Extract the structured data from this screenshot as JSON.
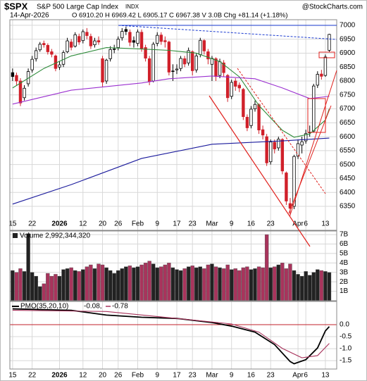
{
  "chart_data": [
    {
      "type": "candlestick",
      "symbol": "$SPX",
      "title": "S&P 500 Large Cap Index",
      "exchange": "INDX",
      "source": "@StockCharts.com",
      "date": "14-Apr-2026",
      "quote": "O 6910.20  H 6969.42  L 6905.17  C 6967.38  V 3.0B  Chg +81.14 (+1.18%)",
      "open": [
        6830,
        6820,
        6800,
        6740,
        6790,
        6840,
        6880,
        6912,
        6935,
        6928,
        6905,
        6890,
        6850,
        6860,
        6905,
        6940,
        6925,
        6960,
        6945,
        6975,
        6960,
        6930,
        6945,
        6880,
        6800,
        6880,
        6915,
        6920,
        6955,
        6985,
        6975,
        6945,
        6935,
        6975,
        6920,
        6880,
        6800,
        6935,
        6965,
        6945,
        6940,
        6835,
        6840,
        6845,
        6880,
        6865,
        6905,
        6840,
        6895,
        6945,
        6905,
        6860,
        6880,
        6820,
        6865,
        6820,
        6745,
        6800,
        6785,
        6770,
        6670,
        6640,
        6700,
        6715,
        6625,
        6600,
        6510,
        6580,
        6560,
        6590,
        6470,
        6360,
        6350,
        6530,
        6570,
        6585,
        6615,
        6620,
        6785,
        6825,
        6820,
        6910.2
      ],
      "high": [
        6845,
        6830,
        6810,
        6785,
        6845,
        6890,
        6920,
        6940,
        6945,
        6935,
        6915,
        6895,
        6870,
        6910,
        6955,
        6950,
        6975,
        6970,
        6985,
        6990,
        6970,
        6955,
        6960,
        6890,
        6880,
        6925,
        6930,
        6960,
        6990,
        6995,
        6985,
        6960,
        6985,
        6985,
        6930,
        6890,
        6940,
        6975,
        6975,
        6960,
        6945,
        6860,
        6860,
        6890,
        6890,
        6920,
        6910,
        6900,
        6955,
        6950,
        6915,
        6890,
        6885,
        6880,
        6875,
        6825,
        6805,
        6810,
        6795,
        6775,
        6680,
        6710,
        6730,
        6720,
        6640,
        6610,
        6590,
        6590,
        6600,
        6595,
        6475,
        6380,
        6535,
        6590,
        6600,
        6625,
        6640,
        6790,
        6835,
        6840,
        6895,
        6969.42
      ],
      "low": [
        6800,
        6785,
        6710,
        6730,
        6780,
        6830,
        6870,
        6905,
        6920,
        6895,
        6885,
        6835,
        6840,
        6850,
        6900,
        6910,
        6920,
        6930,
        6935,
        6950,
        6915,
        6920,
        6930,
        6780,
        6790,
        6870,
        6900,
        6910,
        6945,
        6965,
        6925,
        6920,
        6925,
        6905,
        6870,
        6785,
        6795,
        6925,
        6930,
        6920,
        6820,
        6800,
        6825,
        6835,
        6850,
        6855,
        6820,
        6830,
        6885,
        6895,
        6860,
        6800,
        6800,
        6810,
        6815,
        6725,
        6735,
        6765,
        6760,
        6660,
        6620,
        6630,
        6690,
        6610,
        6590,
        6495,
        6500,
        6540,
        6550,
        6465,
        6355,
        6316,
        6340,
        6520,
        6540,
        6575,
        6600,
        6615,
        6775,
        6805,
        6815,
        6905.17
      ],
      "close": [
        6816,
        6800,
        6721,
        6774,
        6834,
        6878,
        6909,
        6932,
        6930,
        6905,
        6896,
        6845,
        6858,
        6902,
        6944,
        6921,
        6966,
        6940,
        6977,
        6963,
        6926,
        6944,
        6940,
        6796,
        6875,
        6913,
        6915,
        6950,
        6978,
        6978,
        6939,
        6939,
        6976,
        6917,
        6882,
        6798,
        6932,
        6964,
        6942,
        6941,
        6832,
        6836,
        6843,
        6881,
        6861,
        6909,
        6837,
        6890,
        6946,
        6908,
        6879,
        6881,
        6816,
        6869,
        6830,
        6740,
        6795,
        6781,
        6775,
        6672,
        6632,
        6699,
        6716,
        6624,
        6606,
        6506,
        6581,
        6556,
        6591,
        6477,
        6369,
        6343,
        6529,
        6575,
        6582,
        6611,
        6616,
        6782,
        6824,
        6817,
        6886,
        6967.38
      ],
      "overlays": [
        {
          "color": "#2e8b3a",
          "x": [
            0,
            8,
            15,
            24,
            33,
            40,
            47,
            53,
            58,
            63,
            69,
            72,
            76,
            80,
            81
          ],
          "values": [
            6775,
            6845,
            6890,
            6920,
            6915,
            6910,
            6900,
            6870,
            6815,
            6712,
            6623,
            6598,
            6610,
            6660,
            6700
          ]
        },
        {
          "color": "#9b30d0",
          "x": [
            0,
            15,
            33,
            40,
            51,
            62,
            69,
            76,
            81
          ],
          "values": [
            6717,
            6767,
            6793,
            6808,
            6818,
            6808,
            6775,
            6737,
            6745
          ]
        },
        {
          "color": "#1a1a9c",
          "x": [
            0,
            15,
            33,
            51,
            69,
            81
          ],
          "values": [
            6358,
            6428,
            6522,
            6573,
            6585,
            6595
          ]
        }
      ],
      "xlim": [
        -0.7,
        82.9
      ],
      "ylim": [
        6264,
        7020
      ],
      "yticks": [
        6350,
        6400,
        6450,
        6500,
        6550,
        6600,
        6650,
        6700,
        6750,
        6800,
        6850,
        6900,
        6950,
        7000
      ],
      "xticks": [
        {
          "value": 0,
          "label": "15"
        },
        {
          "value": 5,
          "label": "22"
        },
        {
          "value": 12,
          "label": "2026"
        },
        {
          "value": 18,
          "label": "12"
        },
        {
          "value": 23,
          "label": "20"
        },
        {
          "value": 27,
          "label": "26"
        },
        {
          "value": 32,
          "label": "Feb"
        },
        {
          "value": 37,
          "label": "9"
        },
        {
          "value": 42,
          "label": "17"
        },
        {
          "value": 46,
          "label": "23"
        },
        {
          "value": 51,
          "label": "Mar"
        },
        {
          "value": 56,
          "label": "9"
        },
        {
          "value": 61,
          "label": "16"
        },
        {
          "value": 66,
          "label": "23"
        },
        {
          "value": 73,
          "label": "Apr"
        },
        {
          "value": 75,
          "label": "6"
        },
        {
          "value": 80,
          "label": "13"
        }
      ],
      "grid": true
    },
    {
      "type": "bar",
      "title": "Volume 2,992,344,320",
      "values": [
        3.2,
        3.0,
        3.4,
        3.1,
        7.1,
        3.0,
        2.6,
        1.5,
        1.8,
        2.9,
        2.6,
        2.8,
        2.6,
        3.3,
        3.4,
        3.5,
        3.2,
        3.1,
        3.3,
        3.6,
        3.8,
        3.4,
        3.9,
        3.8,
        3.5,
        3.2,
        2.9,
        3.2,
        3.4,
        3.6,
        3.7,
        3.5,
        3.6,
        3.8,
        4.0,
        4.2,
        3.9,
        3.5,
        3.6,
        3.8,
        4.0,
        3.5,
        3.3,
        3.2,
        3.4,
        3.6,
        3.7,
        3.5,
        3.6,
        3.4,
        3.8,
        3.9,
        3.6,
        3.5,
        3.4,
        3.8,
        3.3,
        3.4,
        3.2,
        3.5,
        3.6,
        3.3,
        3.4,
        3.6,
        3.5,
        7.0,
        3.5,
        3.6,
        3.8,
        4.0,
        3.4,
        3.9,
        3.2,
        2.8,
        2.6,
        3.1,
        2.7,
        3.0,
        3.3,
        3.2,
        3.1,
        2.99
      ],
      "up_color": "#222222",
      "down_color": "#a8345c",
      "xlim": [
        -0.7,
        82.9
      ],
      "ylim": [
        0,
        7.38
      ],
      "yticks": [
        {
          "value": 1,
          "label": "1B"
        },
        {
          "value": 2,
          "label": "2B"
        },
        {
          "value": 3,
          "label": "3B"
        },
        {
          "value": 4,
          "label": "4B"
        },
        {
          "value": 5,
          "label": "5B"
        },
        {
          "value": 6,
          "label": "6B"
        },
        {
          "value": 7,
          "label": "7B"
        }
      ],
      "grid": true
    },
    {
      "type": "line",
      "title": "PMO(35,20,10)",
      "legend_values": [
        "-0.08,",
        "-0.78"
      ],
      "series": [
        {
          "color": "#000000",
          "x": [
            0,
            15,
            24,
            33,
            42,
            51,
            56,
            62,
            67,
            71,
            72,
            75,
            78,
            80,
            81
          ],
          "values": [
            0.66,
            0.6,
            0.4,
            0.31,
            0.26,
            0.09,
            -0.06,
            -0.31,
            -0.83,
            -1.54,
            -1.63,
            -1.46,
            -0.97,
            -0.26,
            -0.08
          ]
        },
        {
          "color": "#a8345c",
          "x": [
            0,
            24,
            42,
            56,
            63,
            69,
            74,
            78,
            81
          ],
          "values": [
            0.6,
            0.55,
            0.26,
            0.03,
            -0.31,
            -0.99,
            -1.38,
            -1.29,
            -0.78
          ]
        }
      ],
      "reference_line": {
        "value": 0,
        "color": "#c0202a"
      },
      "xlim": [
        -0.7,
        82.9
      ],
      "ylim": [
        -1.85,
        0.97
      ],
      "yticks": [
        {
          "value": 0,
          "label": "0.0"
        },
        -0.5,
        {
          "value": -1,
          "label": "-1.0"
        },
        -1.5
      ],
      "xticks": [
        {
          "value": 0,
          "label": "15"
        },
        {
          "value": 5,
          "label": "22"
        },
        {
          "value": 12,
          "label": "2026"
        },
        {
          "value": 18,
          "label": "12"
        },
        {
          "value": 23,
          "label": "20"
        },
        {
          "value": 27,
          "label": "26"
        },
        {
          "value": 32,
          "label": "Feb"
        },
        {
          "value": 37,
          "label": "9"
        },
        {
          "value": 42,
          "label": "17"
        },
        {
          "value": 46,
          "label": "23"
        },
        {
          "value": 51,
          "label": "Mar"
        },
        {
          "value": 56,
          "label": "9"
        },
        {
          "value": 61,
          "label": "16"
        },
        {
          "value": 66,
          "label": "23"
        },
        {
          "value": 73,
          "label": "Apr"
        },
        {
          "value": 75,
          "label": "6"
        },
        {
          "value": 80,
          "label": "13"
        }
      ],
      "grid": true
    }
  ]
}
